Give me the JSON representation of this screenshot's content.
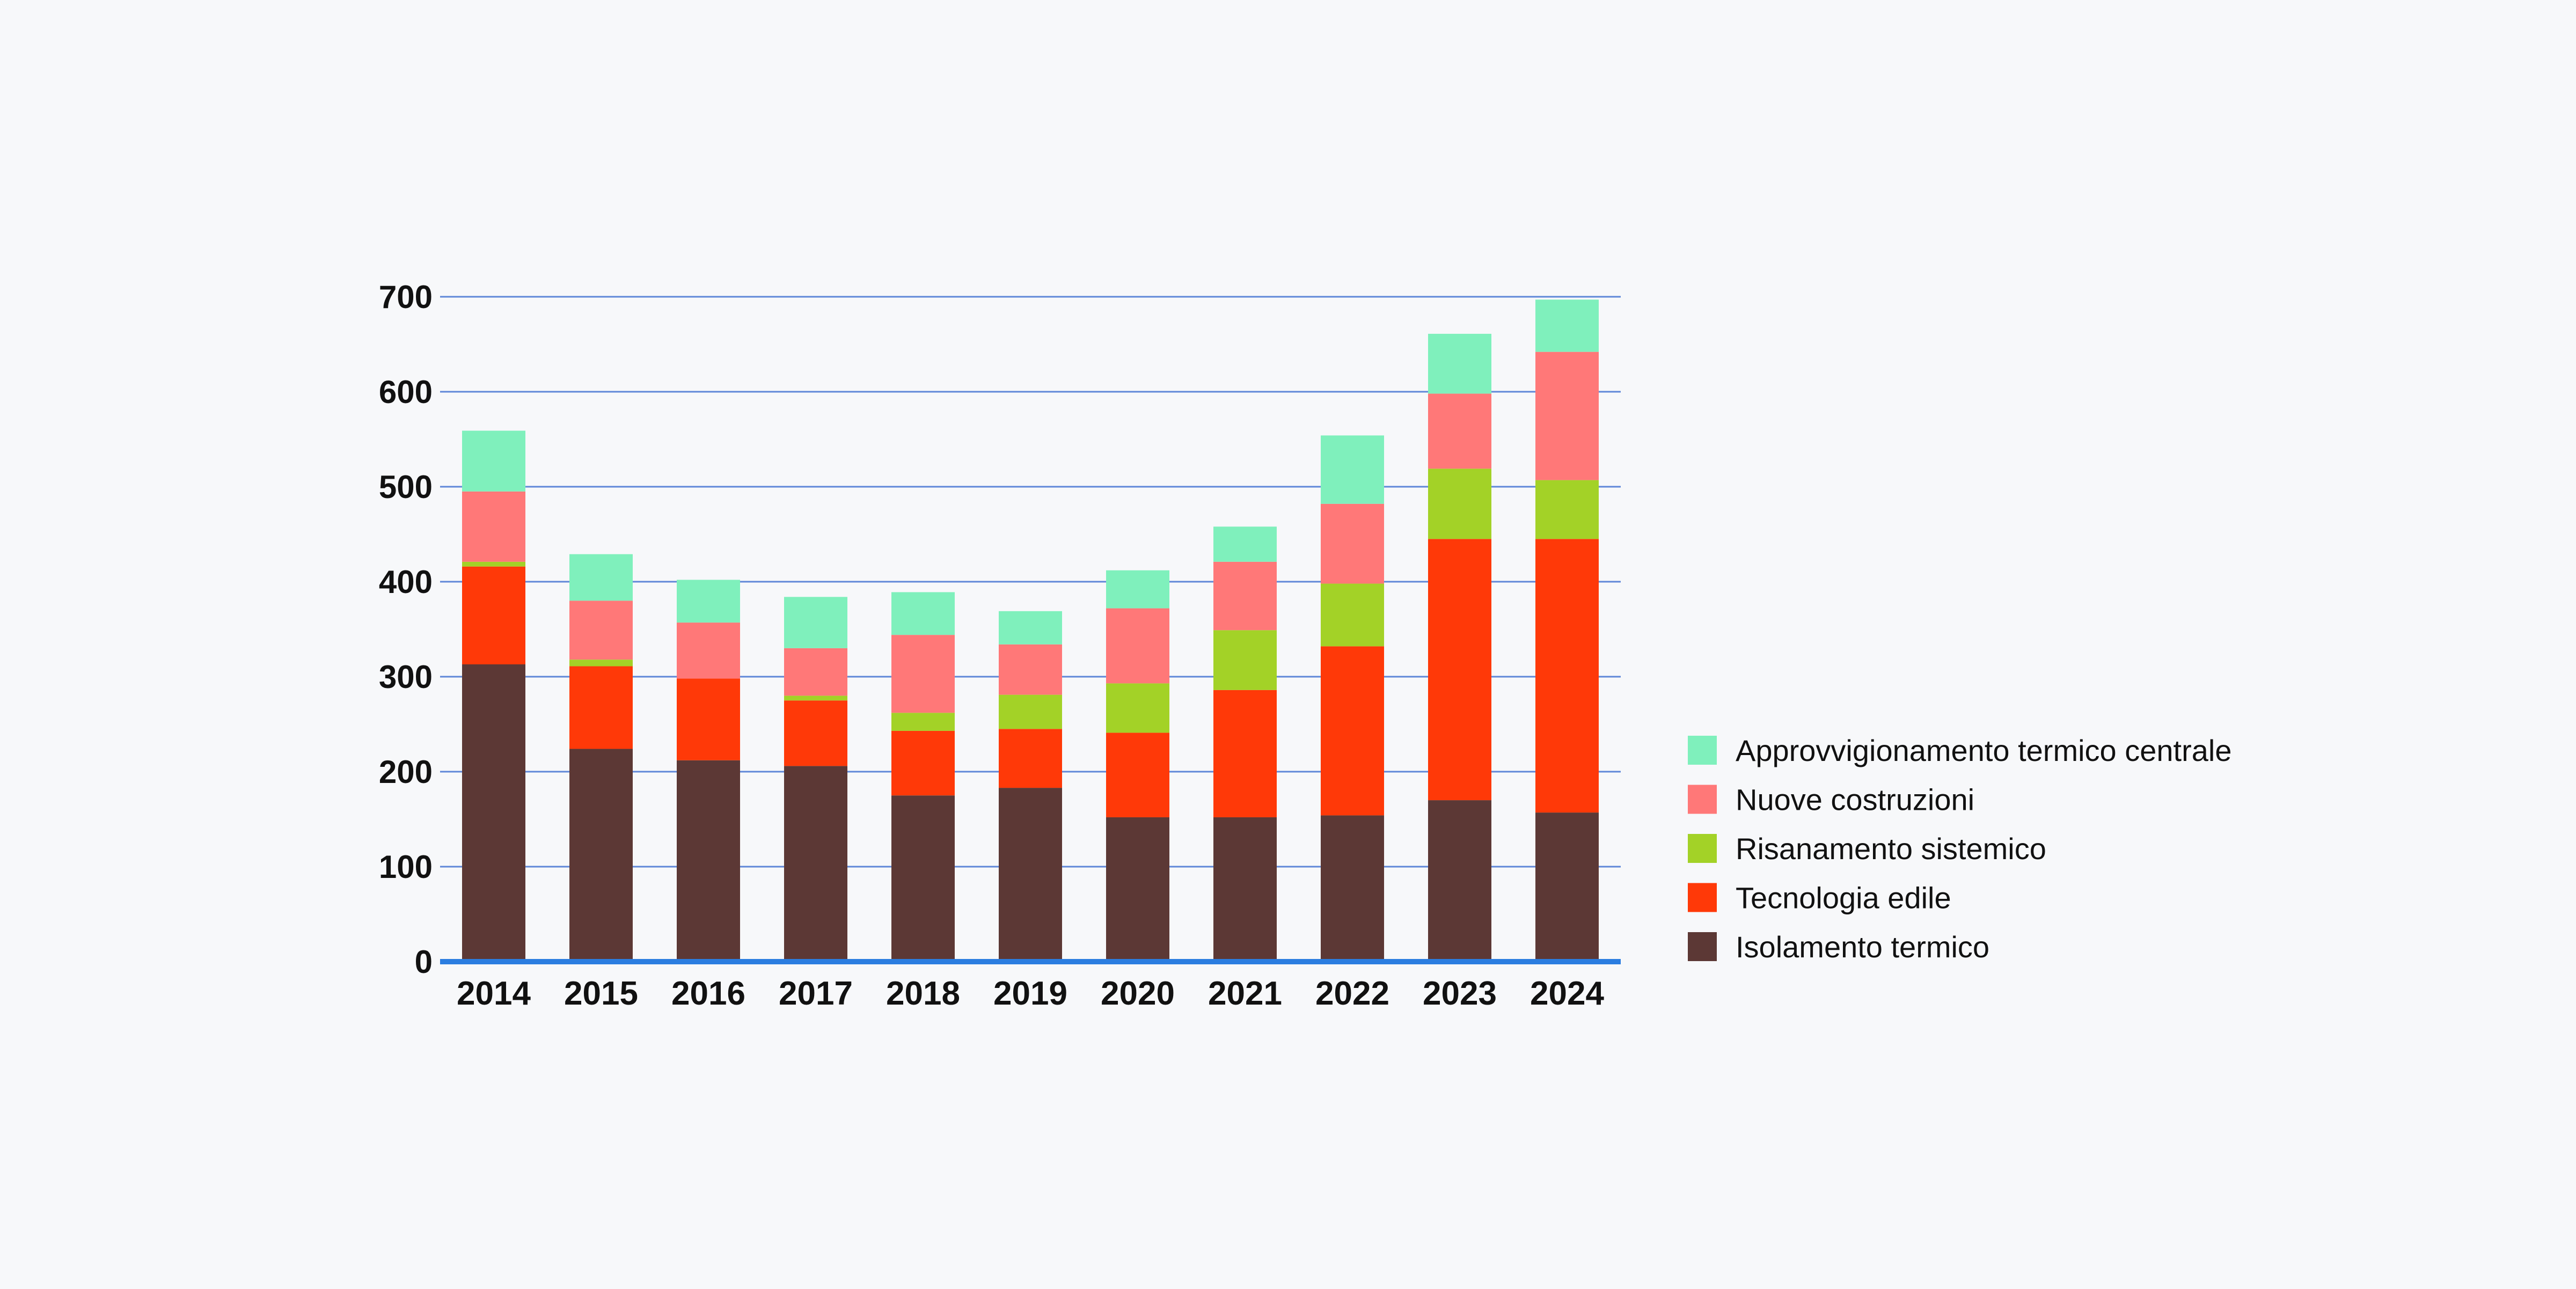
{
  "chart_data": {
    "type": "bar",
    "stacked": true,
    "title": "",
    "xlabel": "",
    "ylabel": "",
    "ylim": [
      0,
      700
    ],
    "yticks": [
      "0",
      "100",
      "200",
      "300",
      "400",
      "500",
      "600",
      "700"
    ],
    "grid": true,
    "legend_position": "right",
    "categories": [
      "2014",
      "2015",
      "2016",
      "2017",
      "2018",
      "2019",
      "2020",
      "2021",
      "2022",
      "2023",
      "2024"
    ],
    "series": [
      {
        "name": "Isolamento termico",
        "color": "#5c3835",
        "values": [
          313,
          224,
          212,
          206,
          175,
          183,
          152,
          152,
          154,
          170,
          157
        ]
      },
      {
        "name": "Tecnologia edile",
        "color": "#ff3908",
        "values": [
          103,
          87,
          86,
          69,
          68,
          62,
          89,
          134,
          178,
          275,
          288
        ]
      },
      {
        "name": "Risanamento sistemico",
        "color": "#a3d227",
        "values": [
          5,
          7,
          0,
          5,
          19,
          36,
          52,
          63,
          66,
          74,
          62
        ]
      },
      {
        "name": "Nuove costruzioni",
        "color": "#ff7878",
        "values": [
          74,
          62,
          59,
          50,
          82,
          53,
          79,
          72,
          84,
          79,
          135
        ]
      },
      {
        "name": "Approvvigionamento termico centrale",
        "color": "#7ff0bc",
        "values": [
          64,
          49,
          45,
          54,
          45,
          35,
          40,
          37,
          72,
          63,
          55
        ]
      }
    ],
    "colors": {
      "grid": "#5f87d8",
      "baseline": "#2b7de0",
      "text": "#111111"
    }
  }
}
